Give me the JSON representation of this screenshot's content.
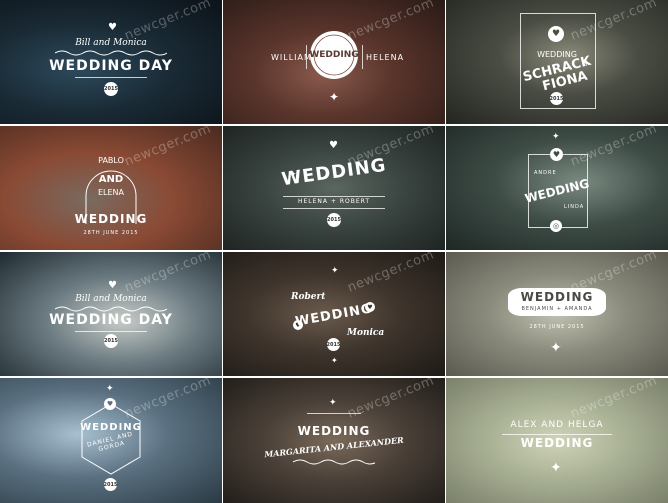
{
  "watermark": "newcger.com",
  "tiles": [
    {
      "script": "Bill and Monica",
      "title": "WEDDING DAY",
      "year": "2015"
    },
    {
      "left": "WILLIAM",
      "badge": "WEDDING",
      "right": "HELENA"
    },
    {
      "title": "WEDDING",
      "name1": "SCHRACK",
      "amp": "+",
      "name2": "FIONA",
      "year": "2015"
    },
    {
      "name1": "PABLO",
      "and": "AND",
      "name2": "ELENA",
      "title": "WEDDING",
      "date": "28TH JUNE 2015"
    },
    {
      "title": "WEDDING",
      "names": "HELENA + ROBERT",
      "year": "2015"
    },
    {
      "name1": "ANDRE",
      "title": "WEDDING",
      "name2": "LINDA"
    },
    {
      "script": "Bill and Monica",
      "title": "WEDDING DAY",
      "year": "2015"
    },
    {
      "name1": "Robert",
      "title": "WEDDING",
      "name2": "Monica",
      "year": "2015"
    },
    {
      "title": "WEDDING",
      "names": "BENJAMIN + AMANDA",
      "date": "28TH JUNE 2015"
    },
    {
      "title": "WEDDING",
      "names": "DANIEL AND GORDA",
      "year": "2015"
    },
    {
      "title": "WEDDING",
      "names": "MARGARITA AND ALEXANDER"
    },
    {
      "names": "ALEX AND HELGA",
      "title": "WEDDING"
    }
  ]
}
